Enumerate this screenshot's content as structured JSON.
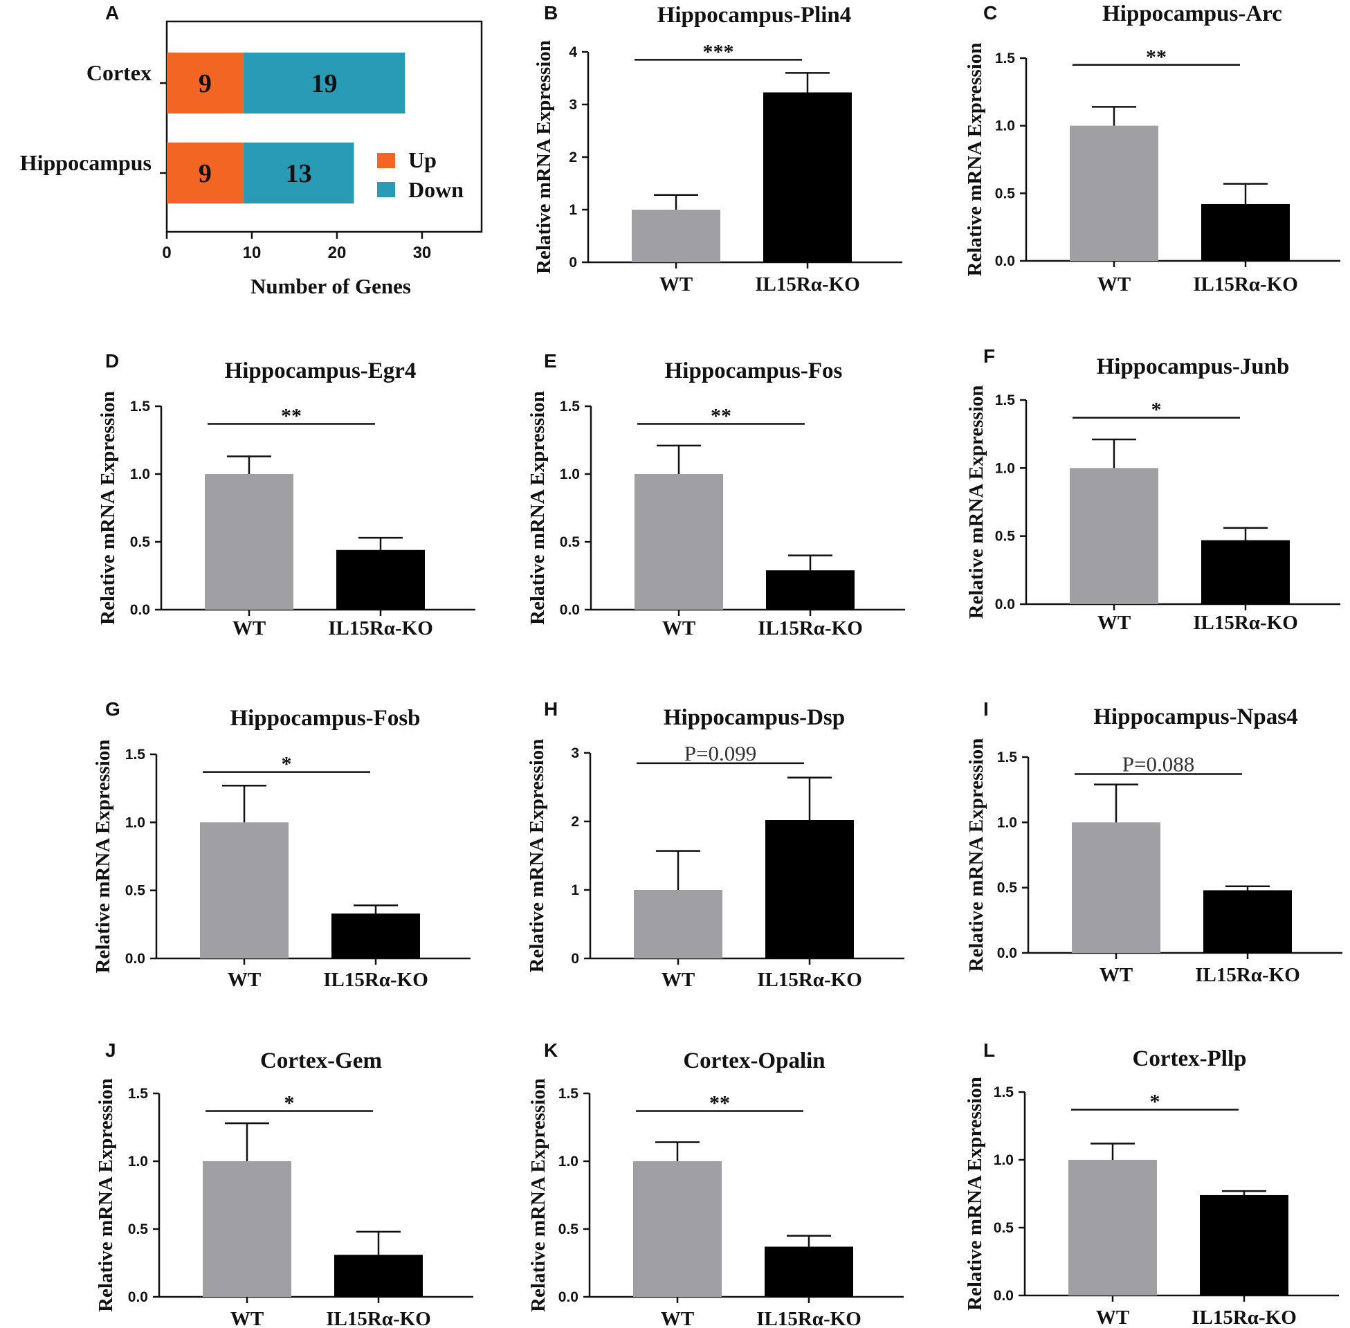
{
  "colors": {
    "up": "#F26522",
    "down": "#2A9BB4",
    "wt": "#A0A0A4",
    "ko": "#000000"
  },
  "chart_data": [
    {
      "panel": "A",
      "type": "bar",
      "orientation": "horizontal",
      "stacked": true,
      "categories": [
        "Cortex",
        "Hippocampus"
      ],
      "series": [
        {
          "name": "Up",
          "values": [
            9,
            9
          ]
        },
        {
          "name": "Down",
          "values": [
            19,
            13
          ]
        }
      ],
      "value_labels": {
        "Up": [
          "9",
          "9"
        ],
        "Down": [
          "19",
          "13"
        ]
      },
      "xlabel": "Number of Genes",
      "xlim": [
        0,
        37
      ],
      "xticks": [
        0,
        10,
        20,
        30
      ],
      "xtick_labels": [
        "0",
        "10",
        "20",
        "30"
      ],
      "legend": [
        "Up",
        "Down"
      ]
    },
    {
      "panel": "B",
      "type": "bar",
      "title": "Hippocampus-Plin4",
      "ylabel": "Relative mRNA Expression",
      "categories": [
        "WT",
        "IL15Rα-KO"
      ],
      "values": [
        1.0,
        3.23
      ],
      "errors": [
        0.28,
        0.37
      ],
      "ylim": [
        0,
        4
      ],
      "yticks": [
        0,
        1,
        2,
        3,
        4
      ],
      "ytick_labels": [
        "0",
        "1",
        "2",
        "3",
        "4"
      ],
      "significance": "***",
      "sig_y": 3.85
    },
    {
      "panel": "C",
      "type": "bar",
      "title": "Hippocampus-Arc",
      "ylabel": "Relative mRNA Expression",
      "categories": [
        "WT",
        "IL15Rα-KO"
      ],
      "values": [
        1.0,
        0.42
      ],
      "errors": [
        0.14,
        0.15
      ],
      "ylim": [
        0,
        1.5
      ],
      "yticks": [
        0,
        0.5,
        1,
        1.5
      ],
      "ytick_labels": [
        "0.0",
        "0.5",
        "1.0",
        "1.5"
      ],
      "significance": "**",
      "sig_y": 1.45
    },
    {
      "panel": "D",
      "type": "bar",
      "title": "Hippocampus-Egr4",
      "ylabel": "Relative mRNA Expression",
      "categories": [
        "WT",
        "IL15Rα-KO"
      ],
      "values": [
        1.0,
        0.44
      ],
      "errors": [
        0.13,
        0.09
      ],
      "ylim": [
        0,
        1.5
      ],
      "yticks": [
        0,
        0.5,
        1,
        1.5
      ],
      "ytick_labels": [
        "0.0",
        "0.5",
        "1.0",
        "1.5"
      ],
      "significance": "**",
      "sig_y": 1.37
    },
    {
      "panel": "E",
      "type": "bar",
      "title": "Hippocampus-Fos",
      "ylabel": "Relative mRNA Expression",
      "categories": [
        "WT",
        "IL15Rα-KO"
      ],
      "values": [
        1.0,
        0.29
      ],
      "errors": [
        0.21,
        0.11
      ],
      "ylim": [
        0,
        1.5
      ],
      "yticks": [
        0,
        0.5,
        1,
        1.5
      ],
      "ytick_labels": [
        "0.0",
        "0.5",
        "1.0",
        "1.5"
      ],
      "significance": "**",
      "sig_y": 1.37
    },
    {
      "panel": "F",
      "type": "bar",
      "title": "Hippocampus-Junb",
      "ylabel": "Relative mRNA Expression",
      "categories": [
        "WT",
        "IL15Rα-KO"
      ],
      "values": [
        1.0,
        0.47
      ],
      "errors": [
        0.21,
        0.09
      ],
      "ylim": [
        0,
        1.5
      ],
      "yticks": [
        0,
        0.5,
        1,
        1.5
      ],
      "ytick_labels": [
        "0.0",
        "0.5",
        "1.0",
        "1.5"
      ],
      "significance": "*",
      "sig_y": 1.37
    },
    {
      "panel": "G",
      "type": "bar",
      "title": "Hippocampus-Fosb",
      "ylabel": "Relative mRNA Expression",
      "categories": [
        "WT",
        "IL15Rα-KO"
      ],
      "values": [
        1.0,
        0.33
      ],
      "errors": [
        0.27,
        0.06
      ],
      "ylim": [
        0,
        1.5
      ],
      "yticks": [
        0,
        0.5,
        1,
        1.5
      ],
      "ytick_labels": [
        "0.0",
        "0.5",
        "1.0",
        "1.5"
      ],
      "significance": "*",
      "sig_y": 1.37
    },
    {
      "panel": "H",
      "type": "bar",
      "title": "Hippocampus-Dsp",
      "ylabel": "Relative mRNA Expression",
      "categories": [
        "WT",
        "IL15Rα-KO"
      ],
      "values": [
        1.0,
        2.02
      ],
      "errors": [
        0.57,
        0.62
      ],
      "ylim": [
        0,
        3
      ],
      "yticks": [
        0,
        1,
        2,
        3
      ],
      "ytick_labels": [
        "0",
        "1",
        "2",
        "3"
      ],
      "significance": "P=0.099",
      "sig_y": 2.85
    },
    {
      "panel": "I",
      "type": "bar",
      "title": "Hippocampus-Npas4",
      "ylabel": "Relative mRNA Expression",
      "categories": [
        "WT",
        "IL15Rα-KO"
      ],
      "values": [
        1.0,
        0.48
      ],
      "errors": [
        0.29,
        0.03
      ],
      "ylim": [
        0,
        1.5
      ],
      "yticks": [
        0,
        0.5,
        1,
        1.5
      ],
      "ytick_labels": [
        "0.0",
        "0.5",
        "1.0",
        "1.5"
      ],
      "significance": "P=0.088",
      "sig_y": 1.37
    },
    {
      "panel": "J",
      "type": "bar",
      "title": "Cortex-Gem",
      "ylabel": "Relative mRNA Expression",
      "categories": [
        "WT",
        "IL15Rα-KO"
      ],
      "values": [
        1.0,
        0.31
      ],
      "errors": [
        0.28,
        0.17
      ],
      "ylim": [
        0,
        1.5
      ],
      "yticks": [
        0,
        0.5,
        1,
        1.5
      ],
      "ytick_labels": [
        "0.0",
        "0.5",
        "1.0",
        "1.5"
      ],
      "significance": "*",
      "sig_y": 1.37
    },
    {
      "panel": "K",
      "type": "bar",
      "title": "Cortex-Opalin",
      "ylabel": "Relative mRNA Expression",
      "categories": [
        "WT",
        "IL15Rα-KO"
      ],
      "values": [
        1.0,
        0.37
      ],
      "errors": [
        0.14,
        0.08
      ],
      "ylim": [
        0,
        1.5
      ],
      "yticks": [
        0,
        0.5,
        1,
        1.5
      ],
      "ytick_labels": [
        "0.0",
        "0.5",
        "1.0",
        "1.5"
      ],
      "significance": "**",
      "sig_y": 1.37
    },
    {
      "panel": "L",
      "type": "bar",
      "title": "Cortex-Pllp",
      "ylabel": "Relative mRNA Expression",
      "categories": [
        "WT",
        "IL15Rα-KO"
      ],
      "values": [
        1.0,
        0.74
      ],
      "errors": [
        0.12,
        0.03
      ],
      "ylim": [
        0,
        1.5
      ],
      "yticks": [
        0,
        0.5,
        1,
        1.5
      ],
      "ytick_labels": [
        "0.0",
        "0.5",
        "1.0",
        "1.5"
      ],
      "significance": "*",
      "sig_y": 1.37
    }
  ]
}
